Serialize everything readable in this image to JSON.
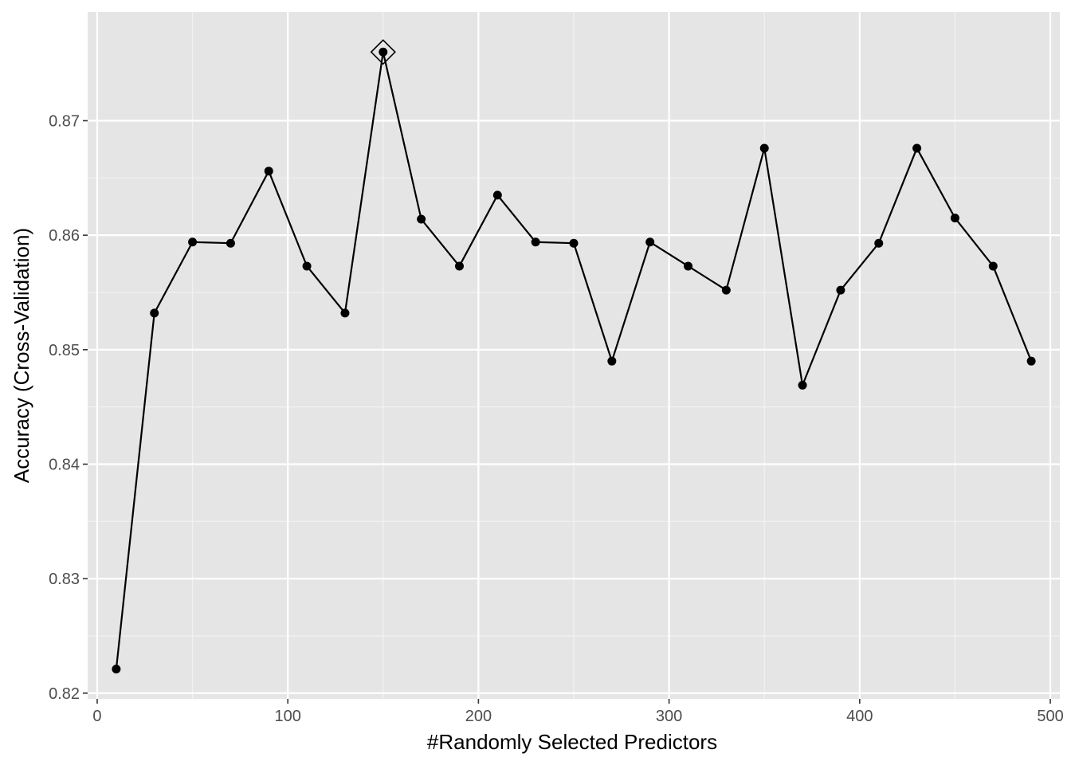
{
  "chart_data": {
    "type": "line",
    "title": "",
    "xlabel": "#Randomly Selected Predictors",
    "ylabel": "Accuracy (Cross-Validation)",
    "xlim": [
      -5,
      505
    ],
    "ylim": [
      0.8195,
      0.8795
    ],
    "x_ticks": [
      0,
      100,
      200,
      300,
      400,
      500
    ],
    "y_ticks": [
      0.82,
      0.83,
      0.84,
      0.85,
      0.86,
      0.87
    ],
    "x_tick_labels": [
      "0",
      "100",
      "200",
      "300",
      "400",
      "500"
    ],
    "y_tick_labels": [
      "0.82",
      "0.83",
      "0.84",
      "0.85",
      "0.86",
      "0.87"
    ],
    "grid": true,
    "legend": "none",
    "series": [
      {
        "x": [
          10,
          30,
          50,
          70,
          90,
          110,
          130,
          150,
          170,
          190,
          210,
          230,
          250,
          270,
          290,
          310,
          330,
          350,
          370,
          390,
          410,
          430,
          450,
          470,
          490
        ],
        "y": [
          0.8221,
          0.8532,
          0.8594,
          0.8593,
          0.8656,
          0.8573,
          0.8532,
          0.876,
          0.8614,
          0.8573,
          0.8635,
          0.8594,
          0.8593,
          0.849,
          0.8594,
          0.8573,
          0.8552,
          0.8676,
          0.8469,
          0.8552,
          0.8593,
          0.8676,
          0.8615,
          0.8573,
          0.849
        ],
        "color": "#000000"
      }
    ],
    "highlight": {
      "x": 150,
      "y": 0.876,
      "marker": "diamond-open"
    },
    "colors": {
      "panel": "#e5e5e5",
      "grid_major": "#ffffff",
      "grid_minor": "#f2f2f2"
    }
  }
}
